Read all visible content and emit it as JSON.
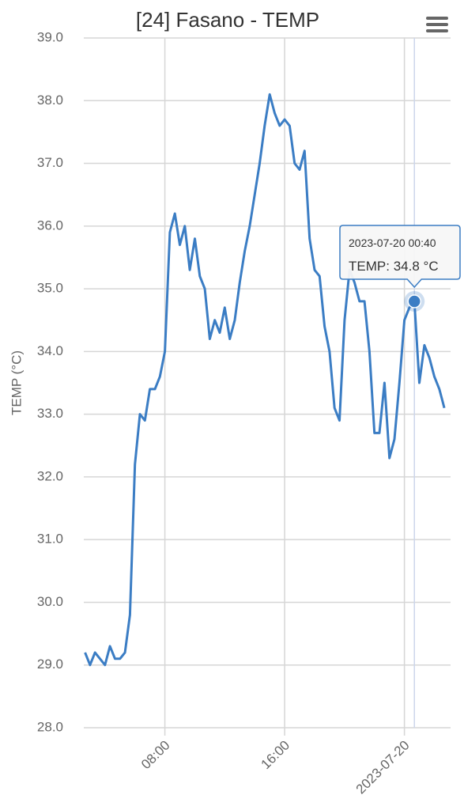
{
  "chart_data": {
    "type": "line",
    "title": "[24] Fasano - TEMP",
    "y_axis_label": "TEMP (°C)",
    "x": [
      "2023-07-19 02:40",
      "2023-07-19 03:00",
      "2023-07-19 03:20",
      "2023-07-19 03:40",
      "2023-07-19 04:00",
      "2023-07-19 04:20",
      "2023-07-19 04:40",
      "2023-07-19 05:00",
      "2023-07-19 05:20",
      "2023-07-19 05:40",
      "2023-07-19 06:00",
      "2023-07-19 06:20",
      "2023-07-19 06:40",
      "2023-07-19 07:00",
      "2023-07-19 07:20",
      "2023-07-19 07:40",
      "2023-07-19 08:00",
      "2023-07-19 08:20",
      "2023-07-19 08:40",
      "2023-07-19 09:00",
      "2023-07-19 09:20",
      "2023-07-19 09:40",
      "2023-07-19 10:00",
      "2023-07-19 10:20",
      "2023-07-19 10:40",
      "2023-07-19 11:00",
      "2023-07-19 11:20",
      "2023-07-19 11:40",
      "2023-07-19 12:00",
      "2023-07-19 12:20",
      "2023-07-19 12:40",
      "2023-07-19 13:00",
      "2023-07-19 13:20",
      "2023-07-19 13:40",
      "2023-07-19 14:00",
      "2023-07-19 14:20",
      "2023-07-19 14:40",
      "2023-07-19 15:00",
      "2023-07-19 15:20",
      "2023-07-19 15:40",
      "2023-07-19 16:00",
      "2023-07-19 16:20",
      "2023-07-19 16:40",
      "2023-07-19 17:00",
      "2023-07-19 17:20",
      "2023-07-19 17:40",
      "2023-07-19 18:00",
      "2023-07-19 18:20",
      "2023-07-19 18:40",
      "2023-07-19 19:00",
      "2023-07-19 19:20",
      "2023-07-19 19:40",
      "2023-07-19 20:00",
      "2023-07-19 20:20",
      "2023-07-19 20:40",
      "2023-07-19 21:00",
      "2023-07-19 21:20",
      "2023-07-19 21:40",
      "2023-07-19 22:00",
      "2023-07-19 22:20",
      "2023-07-19 22:40",
      "2023-07-19 23:00",
      "2023-07-19 23:20",
      "2023-07-19 23:40",
      "2023-07-20 00:00",
      "2023-07-20 00:20",
      "2023-07-20 00:40",
      "2023-07-20 01:00",
      "2023-07-20 01:20",
      "2023-07-20 01:40",
      "2023-07-20 02:00",
      "2023-07-20 02:20",
      "2023-07-20 02:40"
    ],
    "series": [
      {
        "name": "TEMP",
        "color": "#3b7dc4",
        "values": [
          29.2,
          29.0,
          29.2,
          29.1,
          29.0,
          29.3,
          29.1,
          29.1,
          29.2,
          29.8,
          32.2,
          33.0,
          32.9,
          33.4,
          33.4,
          33.6,
          34.0,
          35.9,
          36.2,
          35.7,
          36.0,
          35.3,
          35.8,
          35.2,
          35.0,
          34.2,
          34.5,
          34.3,
          34.7,
          34.2,
          34.5,
          35.1,
          35.6,
          36.0,
          36.5,
          37.0,
          37.6,
          38.1,
          37.8,
          37.6,
          37.7,
          37.6,
          37.0,
          36.9,
          37.2,
          35.8,
          35.3,
          35.2,
          34.4,
          34.0,
          33.1,
          32.9,
          34.5,
          35.3,
          35.1,
          34.8,
          34.8,
          34.0,
          32.7,
          32.7,
          33.5,
          32.3,
          32.6,
          33.5,
          34.5,
          34.7,
          34.8,
          33.5,
          34.1,
          33.9,
          33.6,
          33.4,
          33.1
        ]
      }
    ],
    "xlim": [
      "2023-07-19 02:35",
      "2023-07-20 03:05"
    ],
    "xticks": [
      {
        "value": "2023-07-19 08:00",
        "label": "08:00"
      },
      {
        "value": "2023-07-19 16:00",
        "label": "16:00"
      },
      {
        "value": "2023-07-20 00:00",
        "label": "2023-07-20"
      }
    ],
    "ylim": [
      28,
      39
    ],
    "yticks": [
      {
        "value": 28,
        "label": "28.0"
      },
      {
        "value": 29,
        "label": "29.0"
      },
      {
        "value": 30,
        "label": "30.0"
      },
      {
        "value": 31,
        "label": "31.0"
      },
      {
        "value": 32,
        "label": "32.0"
      },
      {
        "value": 33,
        "label": "33.0"
      },
      {
        "value": 34,
        "label": "34.0"
      },
      {
        "value": 35,
        "label": "35.0"
      },
      {
        "value": 36,
        "label": "36.0"
      },
      {
        "value": 37,
        "label": "37.0"
      },
      {
        "value": 38,
        "label": "38.0"
      },
      {
        "value": 39,
        "label": "39.0"
      }
    ],
    "grid": true,
    "tooltip": {
      "x": "2023-07-20 00:40",
      "series": "TEMP",
      "value": 34.8,
      "unit": "°C"
    }
  }
}
